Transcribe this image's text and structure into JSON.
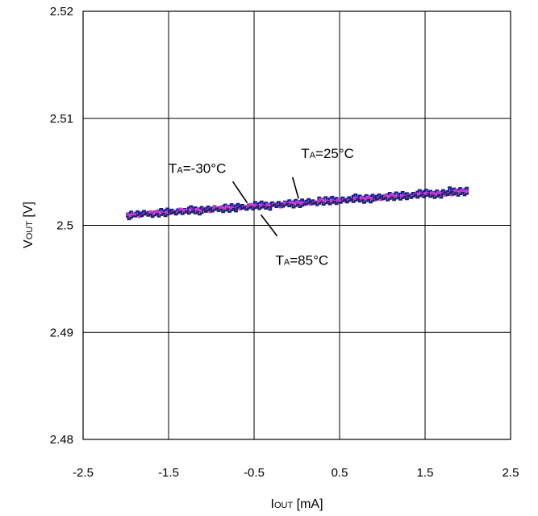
{
  "chart_data": {
    "type": "line",
    "xlabel": {
      "main": "I",
      "sub": "OUT",
      "unit": " [mA]"
    },
    "ylabel": {
      "main": "V",
      "sub": "OUT",
      "unit": " [V]"
    },
    "xlim": [
      -2.5,
      2.5
    ],
    "ylim": [
      2.48,
      2.52
    ],
    "x_ticks": [
      "-2.5",
      "-1.5",
      "-0.5",
      "0.5",
      "1.5",
      "2.5"
    ],
    "y_ticks": [
      "2.48",
      "2.49",
      "2.5",
      "2.51",
      "2.52"
    ],
    "grid": true,
    "series": [
      {
        "color": "#1a1aa0",
        "x": [
          -2.0,
          2.0
        ],
        "y": [
          2.5011,
          2.5034
        ]
      },
      {
        "color": "#cc33cc",
        "x": [
          -2.0,
          2.0
        ],
        "y": [
          2.50095,
          2.50315
        ]
      },
      {
        "color": "#20206e",
        "x": [
          -2.0,
          2.0
        ],
        "y": [
          2.5008,
          2.503
        ]
      }
    ],
    "annotations": [
      {
        "main": "T",
        "sub": "A",
        "text": "=25°C",
        "x": 0.05,
        "y": 2.5063,
        "pointer": [
          -0.05,
          2.5045,
          0.02,
          2.5025
        ]
      },
      {
        "main": "T",
        "sub": "A",
        "text": "=-30°C",
        "x": -1.5,
        "y": 2.5049,
        "pointer": [
          -0.75,
          2.5041,
          -0.58,
          2.5021
        ]
      },
      {
        "main": "T",
        "sub": "A",
        "text": "=85°C",
        "x": -0.25,
        "y": 2.4963,
        "pointer": [
          -0.42,
          2.501,
          -0.23,
          2.499
        ]
      }
    ]
  }
}
